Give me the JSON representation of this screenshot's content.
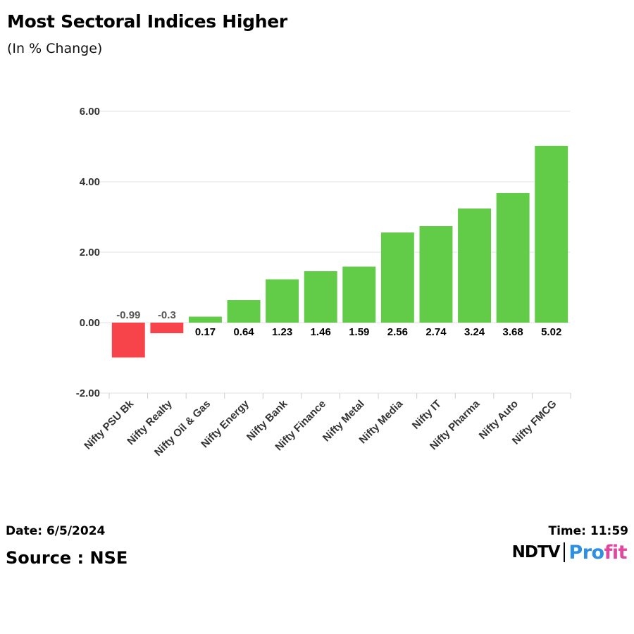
{
  "header": {
    "title": "Most Sectoral Indices Higher",
    "subtitle": "(In % Change)"
  },
  "footer": {
    "date": "Date: 6/5/2024",
    "time": "Time: 11:59",
    "source": "Source : NSE",
    "logo_left": "NDTV",
    "logo_right_a": "Pro",
    "logo_right_b": "fit"
  },
  "colors": {
    "positive": "#62cc48",
    "negative": "#f7434a",
    "grid": "#e3e3e3",
    "axis_text": "#333333",
    "logo_blue": "#2f8fe0",
    "logo_pink": "#e0479e"
  },
  "chart_data": {
    "type": "bar",
    "title": "Most Sectoral Indices Higher",
    "subtitle": "(In % Change)",
    "categories": [
      "Nifty PSU Bk",
      "Nifty Realty",
      "Nifty Oil & Gas",
      "Nifty Energy",
      "Nifty Bank",
      "Nifty Finance",
      "Nifty Metal",
      "Nifty Media",
      "Nifty IT",
      "Nifty Pharma",
      "Nifty Auto",
      "Nifty FMCG"
    ],
    "values": [
      -0.99,
      -0.3,
      0.17,
      0.64,
      1.23,
      1.46,
      1.59,
      2.56,
      2.74,
      3.24,
      3.68,
      5.02
    ],
    "data_labels": [
      "-0.99",
      "-0.3",
      "0.17",
      "0.64",
      "1.23",
      "1.46",
      "1.59",
      "2.56",
      "2.74",
      "3.24",
      "3.68",
      "5.02"
    ],
    "ylim": [
      -2,
      6
    ],
    "yticks": [
      -2,
      0,
      2,
      4,
      6
    ],
    "ytick_labels": [
      "-2.00",
      "0.00",
      "2.00",
      "4.00",
      "6.00"
    ],
    "xlabel": "",
    "ylabel": "",
    "grid": true,
    "legend": "none"
  }
}
